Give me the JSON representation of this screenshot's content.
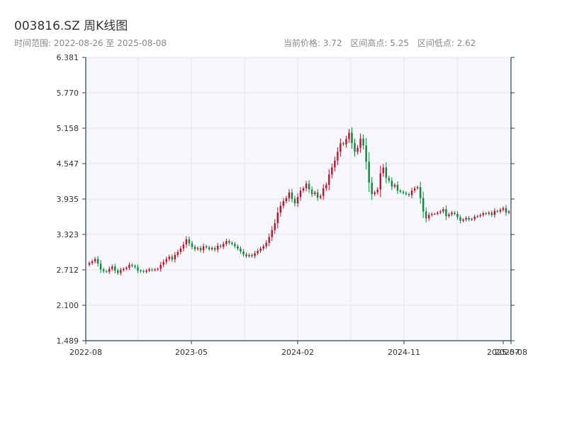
{
  "header": {
    "title": "003816.SZ 周K线图",
    "subtitle": "时间范围: 2022-08-26 至 2025-08-08",
    "current_price": "当前价格: 3.72",
    "range_high": "区间高点: 5.25",
    "range_low": "区间低点: 2.62"
  },
  "colors": {
    "up": "#c8102e",
    "down": "#0a8a3a",
    "plot_bg": "#f6f7fa",
    "grid": "#e3e6ec",
    "axis": "#2c3e50"
  },
  "chart_data": {
    "type": "candlestick",
    "title": "003816.SZ 周K线图",
    "ylim": [
      1.489,
      6.381
    ],
    "y_ticks": [
      "6.381",
      "5.770",
      "5.158",
      "4.547",
      "3.935",
      "3.323",
      "2.712",
      "2.100",
      "1.489"
    ],
    "x_ticks": [
      "2022-08",
      "2023-05",
      "2024-02",
      "2024-11",
      "2025-07",
      "2025-08"
    ],
    "grid": true,
    "close": [
      2.83,
      2.86,
      2.9,
      2.82,
      2.72,
      2.69,
      2.68,
      2.73,
      2.77,
      2.7,
      2.66,
      2.71,
      2.73,
      2.75,
      2.8,
      2.78,
      2.76,
      2.7,
      2.69,
      2.68,
      2.7,
      2.72,
      2.71,
      2.72,
      2.73,
      2.8,
      2.85,
      2.9,
      2.94,
      2.89,
      2.97,
      3.02,
      3.08,
      3.15,
      3.24,
      3.17,
      3.11,
      3.07,
      3.09,
      3.05,
      3.12,
      3.1,
      3.07,
      3.09,
      3.06,
      3.13,
      3.11,
      3.16,
      3.21,
      3.18,
      3.16,
      3.12,
      3.08,
      3.03,
      2.98,
      2.95,
      2.97,
      2.95,
      3.0,
      3.04,
      3.08,
      3.12,
      3.18,
      3.28,
      3.4,
      3.52,
      3.7,
      3.82,
      3.9,
      3.95,
      4.05,
      3.94,
      3.86,
      3.97,
      4.08,
      4.12,
      4.2,
      4.1,
      4.02,
      4.05,
      3.96,
      3.99,
      4.12,
      4.18,
      4.36,
      4.48,
      4.6,
      4.75,
      4.9,
      4.88,
      4.97,
      5.08,
      4.9,
      4.75,
      4.82,
      4.98,
      4.86,
      4.58,
      4.22,
      4.02,
      4.05,
      4.1,
      4.38,
      4.48,
      4.3,
      4.25,
      4.15,
      4.18,
      4.08,
      4.06,
      4.04,
      4.02,
      4.0,
      4.08,
      4.12,
      4.14,
      3.95,
      3.72,
      3.6,
      3.66,
      3.68,
      3.68,
      3.7,
      3.72,
      3.76,
      3.64,
      3.67,
      3.7,
      3.68,
      3.62,
      3.56,
      3.58,
      3.61,
      3.58,
      3.59,
      3.63,
      3.64,
      3.66,
      3.69,
      3.68,
      3.7,
      3.66,
      3.73,
      3.72,
      3.75,
      3.78,
      3.7,
      3.72
    ]
  }
}
